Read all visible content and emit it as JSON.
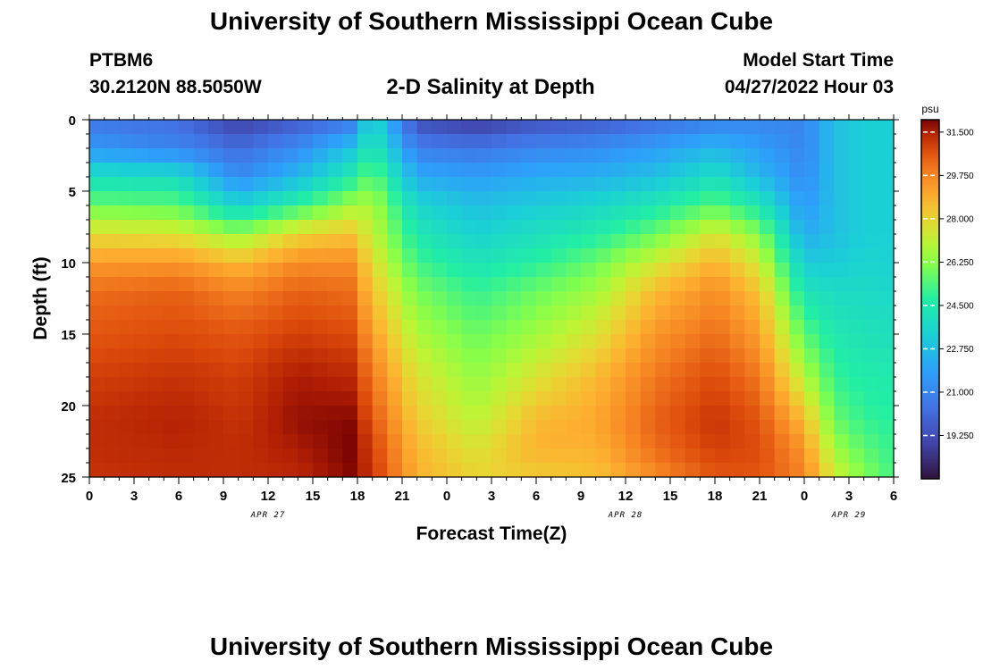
{
  "page": {
    "title": "University of Southern Mississippi Ocean Cube",
    "footer_title": "University of Southern Mississippi Ocean Cube"
  },
  "header": {
    "station": "PTBM6",
    "coords": "30.2120N  88.5050W",
    "chart_title": "2-D Salinity at Depth",
    "model_label": "Model Start Time",
    "model_time": "04/27/2022 Hour 03"
  },
  "chart_data": {
    "type": "heatmap",
    "title": "2-D Salinity at Depth",
    "xlabel": "Forecast Time(Z)",
    "ylabel": "Depth (ft)",
    "x_ticks": [
      "0",
      "3",
      "6",
      "9",
      "12",
      "15",
      "18",
      "21",
      "0",
      "3",
      "6",
      "9",
      "12",
      "15",
      "18",
      "21",
      "0",
      "3",
      "6"
    ],
    "x_date_labels": [
      {
        "label": "APR 27",
        "hour_index": 12
      },
      {
        "label": "APR 28",
        "hour_index": 36
      },
      {
        "label": "APR 29",
        "hour_index": 51
      }
    ],
    "x_range_hours": [
      0,
      54
    ],
    "y_ticks": [
      0,
      5,
      10,
      15,
      20,
      25
    ],
    "ylim": [
      0,
      25
    ],
    "colorbar": {
      "units": "psu",
      "min": 17.5,
      "max": 32.0,
      "tick_values": [
        31.5,
        29.75,
        28.0,
        26.25,
        24.5,
        22.75,
        21.0,
        19.25
      ],
      "tick_labels": [
        "31.500",
        "29.750",
        "28.000",
        "26.250",
        "24.500",
        "22.750",
        "21.000",
        "19.250"
      ]
    },
    "field": {
      "description": "salinity (psu) at key times; rows = depth ft, columns = forecast hour",
      "depths_ft": [
        0,
        2,
        4,
        6,
        8,
        10,
        12,
        15,
        18,
        21,
        23,
        25
      ],
      "hours": [
        0,
        6,
        10,
        14,
        17.5,
        19,
        22,
        26,
        30,
        34,
        38,
        42,
        45,
        48,
        50,
        52,
        54
      ],
      "values": [
        [
          20.5,
          20.2,
          18.8,
          19.6,
          20.5,
          23.8,
          19.2,
          18.6,
          19.3,
          19.6,
          20.2,
          20.8,
          21.0,
          21.0,
          22.8,
          23.3,
          23.3
        ],
        [
          21.6,
          21.0,
          20.2,
          21.2,
          22.8,
          24.5,
          20.8,
          20.5,
          21.0,
          21.2,
          21.8,
          22.5,
          21.8,
          21.0,
          22.8,
          23.3,
          23.3
        ],
        [
          24.0,
          23.8,
          21.2,
          22.6,
          24.5,
          25.8,
          22.2,
          21.8,
          22.2,
          22.4,
          22.8,
          24.0,
          22.6,
          21.2,
          22.8,
          23.3,
          23.3
        ],
        [
          25.8,
          25.6,
          23.4,
          25.0,
          26.6,
          26.8,
          23.6,
          22.8,
          23.2,
          23.6,
          24.4,
          25.6,
          24.4,
          21.6,
          22.8,
          23.3,
          23.3
        ],
        [
          27.8,
          27.6,
          26.4,
          28.0,
          28.4,
          27.2,
          24.4,
          23.4,
          24.0,
          24.6,
          25.8,
          27.6,
          26.2,
          22.2,
          22.8,
          23.3,
          23.3
        ],
        [
          29.3,
          29.4,
          28.6,
          29.6,
          29.6,
          27.8,
          25.2,
          24.2,
          24.8,
          25.8,
          27.4,
          28.8,
          27.4,
          23.2,
          23.2,
          23.5,
          23.4
        ],
        [
          30.2,
          30.4,
          29.8,
          30.4,
          30.2,
          28.4,
          26.0,
          25.0,
          25.8,
          26.6,
          28.6,
          29.6,
          28.4,
          24.2,
          23.8,
          23.8,
          23.6
        ],
        [
          30.6,
          30.8,
          30.6,
          31.0,
          30.8,
          29.2,
          26.8,
          25.8,
          26.6,
          27.6,
          29.4,
          30.2,
          29.2,
          25.6,
          24.4,
          24.2,
          24.0
        ],
        [
          31.0,
          31.2,
          31.0,
          31.6,
          31.4,
          30.0,
          27.6,
          26.4,
          27.6,
          28.6,
          30.0,
          30.8,
          30.0,
          27.0,
          25.0,
          24.6,
          24.5
        ],
        [
          31.3,
          31.5,
          31.2,
          31.8,
          31.9,
          30.6,
          28.2,
          27.0,
          28.6,
          29.0,
          30.4,
          31.2,
          30.6,
          28.6,
          25.8,
          25.0,
          24.8
        ],
        [
          31.3,
          31.4,
          31.3,
          31.6,
          32.0,
          31.0,
          28.6,
          27.6,
          28.8,
          28.8,
          30.2,
          31.0,
          30.8,
          29.4,
          26.6,
          25.6,
          25.0
        ],
        [
          31.2,
          31.3,
          31.3,
          31.4,
          31.9,
          31.2,
          28.8,
          28.0,
          28.2,
          28.4,
          29.6,
          30.6,
          30.6,
          29.8,
          27.4,
          26.2,
          25.2
        ]
      ]
    }
  }
}
